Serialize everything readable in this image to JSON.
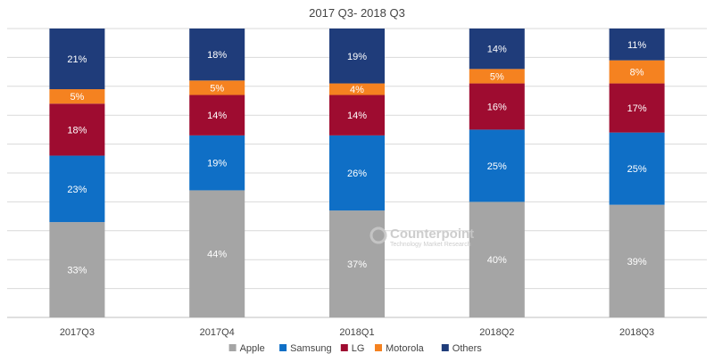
{
  "chart_data": {
    "type": "bar",
    "stacked": true,
    "title": "2017 Q3- 2018 Q3",
    "categories": [
      "2017Q3",
      "2017Q4",
      "2018Q1",
      "2018Q2",
      "2018Q3"
    ],
    "series": [
      {
        "name": "Apple",
        "color": "#a5a5a5",
        "values": [
          33,
          44,
          37,
          40,
          39
        ],
        "labels": [
          "33%",
          "44%",
          "37%",
          "40%",
          "39%"
        ]
      },
      {
        "name": "Samsung",
        "color": "#0f6fc6",
        "values": [
          23,
          19,
          26,
          25,
          25
        ],
        "labels": [
          "23%",
          "19%",
          "26%",
          "25%",
          "25%"
        ]
      },
      {
        "name": "LG",
        "color": "#9e0c30",
        "values": [
          18,
          14,
          14,
          16,
          17
        ],
        "labels": [
          "18%",
          "14%",
          "14%",
          "16%",
          "17%"
        ]
      },
      {
        "name": "Motorola",
        "color": "#f58220",
        "values": [
          5,
          5,
          4,
          5,
          8
        ],
        "labels": [
          "5%",
          "5%",
          "4%",
          "5%",
          "8%"
        ]
      },
      {
        "name": "Others",
        "color": "#1f3c7a",
        "values": [
          21,
          18,
          19,
          14,
          11
        ],
        "labels": [
          "21%",
          "18%",
          "19%",
          "14%",
          "11%"
        ]
      }
    ],
    "ylim": [
      0,
      100
    ],
    "grid": true,
    "legend_position": "bottom"
  },
  "watermark": {
    "title": "Counterpoint",
    "subtitle": "Technology Market Research",
    "icon": "counterpoint-logo-icon"
  }
}
